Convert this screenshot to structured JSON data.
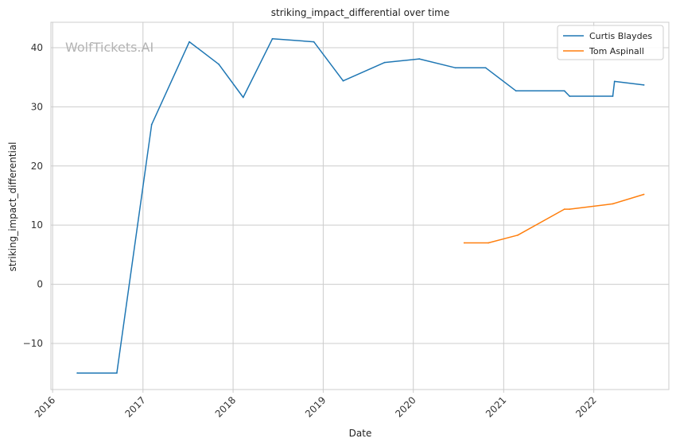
{
  "chart_data": {
    "type": "line",
    "title": "striking_impact_differential over time",
    "xlabel": "Date",
    "ylabel": "striking_impact_differential",
    "watermark": "WolfTickets.AI",
    "xlim": [
      "2015-12-25",
      "2022-11-01"
    ],
    "ylim": [
      -17.8,
      44.3
    ],
    "x_ticks": [
      "2016-01-01",
      "2017-01-01",
      "2018-01-01",
      "2019-01-01",
      "2020-01-01",
      "2021-01-01",
      "2022-01-01"
    ],
    "x_tick_labels": [
      "2016",
      "2017",
      "2018",
      "2019",
      "2020",
      "2021",
      "2022"
    ],
    "y_ticks": [
      -10,
      0,
      10,
      20,
      30,
      40
    ],
    "y_tick_labels": [
      "−10",
      "0",
      "10",
      "20",
      "30",
      "40"
    ],
    "grid": true,
    "legend_position": "top-right",
    "series": [
      {
        "name": "Curtis Blaydes",
        "color": "#1f77b4",
        "points": [
          {
            "x": "2016-04-10",
            "y": -15.0
          },
          {
            "x": "2016-09-17",
            "y": -15.0
          },
          {
            "x": "2017-02-05",
            "y": 27.0
          },
          {
            "x": "2017-07-08",
            "y": 41.0
          },
          {
            "x": "2017-11-04",
            "y": 37.2
          },
          {
            "x": "2018-02-11",
            "y": 31.6
          },
          {
            "x": "2018-06-09",
            "y": 41.5
          },
          {
            "x": "2018-11-24",
            "y": 41.0
          },
          {
            "x": "2019-03-23",
            "y": 34.4
          },
          {
            "x": "2019-09-07",
            "y": 37.5
          },
          {
            "x": "2020-01-25",
            "y": 38.1
          },
          {
            "x": "2020-06-20",
            "y": 36.6
          },
          {
            "x": "2020-10-20",
            "y": 36.6
          },
          {
            "x": "2021-02-20",
            "y": 32.7
          },
          {
            "x": "2021-09-04",
            "y": 32.7
          },
          {
            "x": "2021-09-25",
            "y": 31.8
          },
          {
            "x": "2022-03-19",
            "y": 31.8
          },
          {
            "x": "2022-03-26",
            "y": 34.3
          },
          {
            "x": "2022-07-23",
            "y": 33.7
          }
        ]
      },
      {
        "name": "Tom Aspinall",
        "color": "#ff7f0e",
        "points": [
          {
            "x": "2020-07-25",
            "y": 7.0
          },
          {
            "x": "2020-10-31",
            "y": 7.0
          },
          {
            "x": "2021-02-27",
            "y": 8.3
          },
          {
            "x": "2021-09-04",
            "y": 12.7
          },
          {
            "x": "2021-09-25",
            "y": 12.7
          },
          {
            "x": "2022-03-19",
            "y": 13.6
          },
          {
            "x": "2022-07-23",
            "y": 15.2
          }
        ]
      }
    ]
  }
}
